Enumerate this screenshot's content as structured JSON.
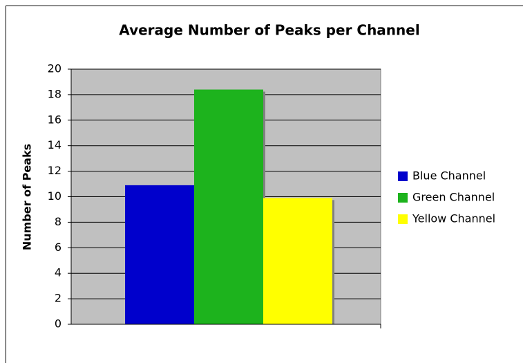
{
  "chart_data": {
    "type": "bar",
    "title": "Average Number of Peaks per Channel",
    "y_label": "Number of Peaks",
    "categories": [
      null
    ],
    "series": [
      {
        "name": "Blue Channel",
        "color": "#0000cc",
        "values": [
          10.9
        ]
      },
      {
        "name": "Green Channel",
        "color": "#1db31d",
        "values": [
          18.4
        ]
      },
      {
        "name": "Yellow Channel",
        "color": "#ffff00",
        "values": [
          9.9
        ]
      }
    ],
    "ylim": [
      0,
      20
    ],
    "yticks": [
      0,
      2,
      4,
      6,
      8,
      10,
      12,
      14,
      16,
      18,
      20
    ],
    "grid": true,
    "legend": "right"
  }
}
